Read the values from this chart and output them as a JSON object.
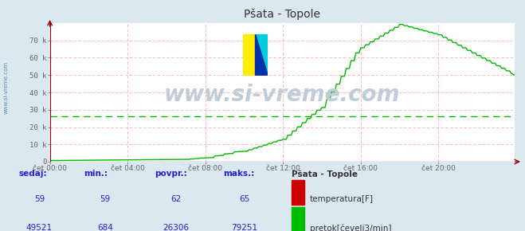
{
  "title": "Pšata - Topole",
  "bg_color": "#dce8f0",
  "plot_bg_color": "#ffffff",
  "grid_color": "#ffaaaa",
  "x_labels": [
    "čet 00:00",
    "čet 04:00",
    "čet 08:00",
    "čet 12:00",
    "čet 16:00",
    "čet 20:00"
  ],
  "x_ticks_idx": [
    0,
    48,
    96,
    144,
    192,
    240
  ],
  "y_ticks": [
    0,
    10000,
    20000,
    30000,
    40000,
    50000,
    60000,
    70000
  ],
  "y_tick_labels": [
    "0",
    "10 k",
    "20 k",
    "30 k",
    "40 k",
    "50 k",
    "60 k",
    "70 k"
  ],
  "y_max": 80000,
  "temp_color": "#cc0000",
  "flow_color": "#00bb00",
  "avg_line_color": "#00bb00",
  "avg_line_value": 26306,
  "watermark_text": "www.si-vreme.com",
  "left_text": "www.si-vreme.com",
  "footer_bg": "#dce8f0",
  "footer_label_color": "#2222cc",
  "temp_sedaj": "59",
  "temp_min": "59",
  "temp_povpr": "62",
  "temp_maks": "65",
  "flow_sedaj": "49521",
  "flow_min": "684",
  "flow_povpr": "26306",
  "flow_maks": "79251",
  "n_points": 288
}
